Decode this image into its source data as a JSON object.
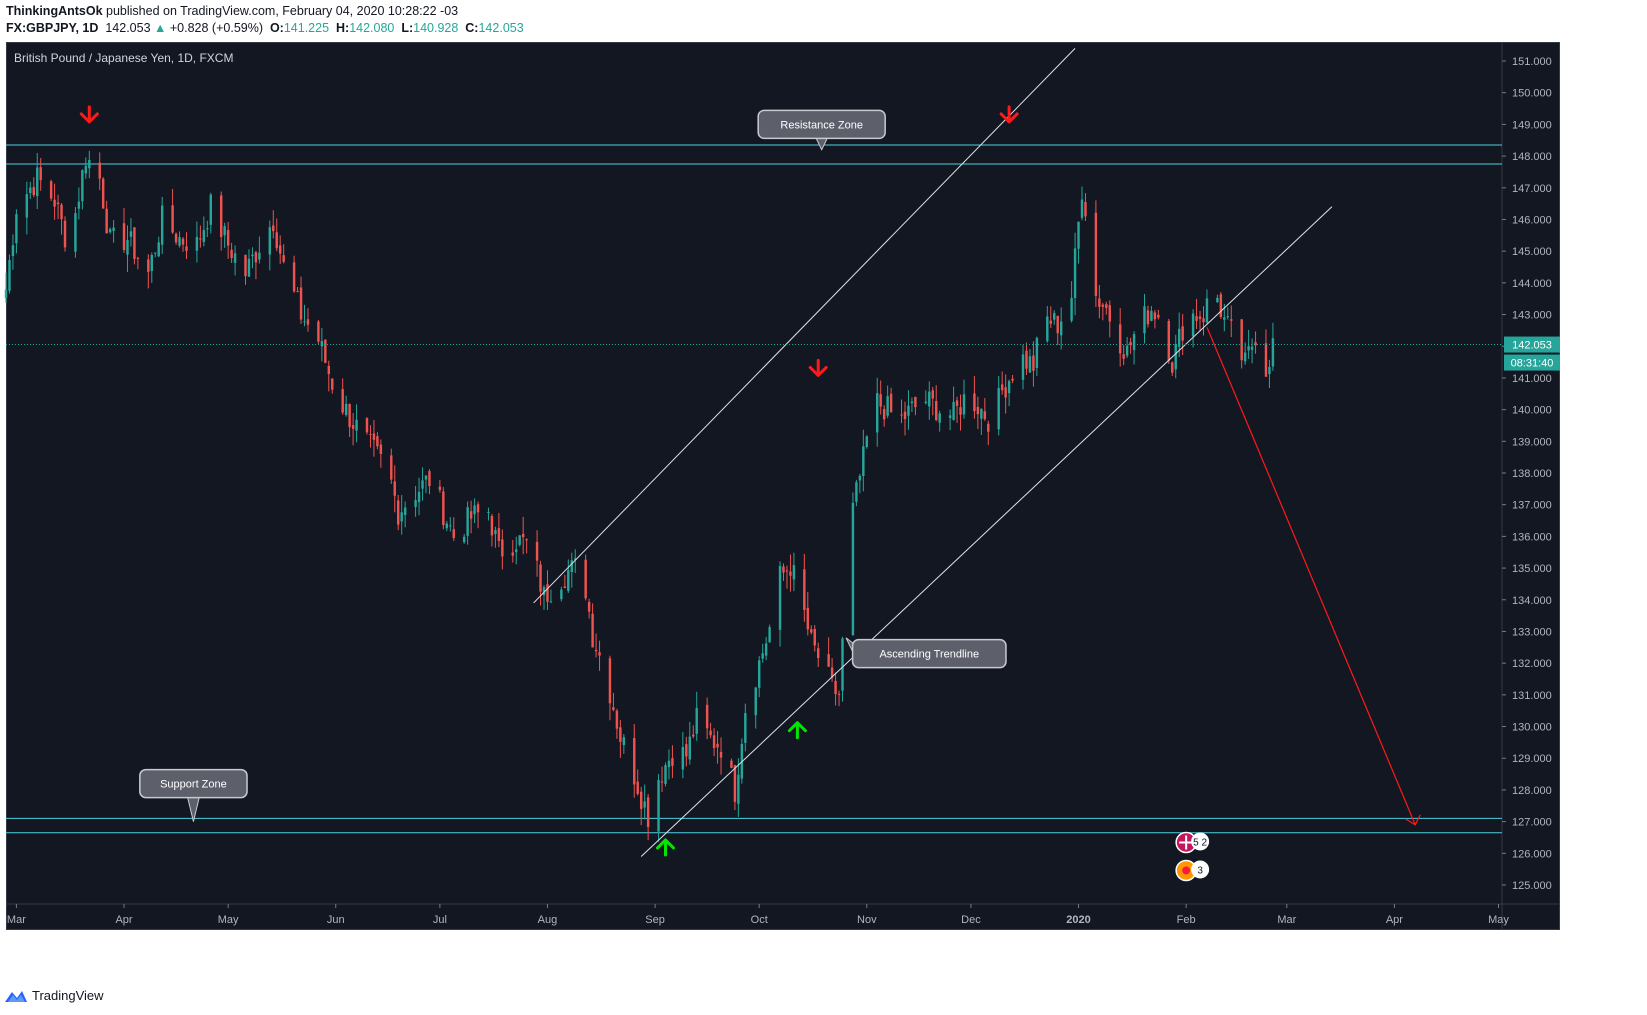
{
  "header": {
    "author": "ThinkingAntsOk",
    "published": "published on TradingView.com, February 04, 2020 10:28:22 -03",
    "symbol": "FX:GBPJPY, 1D",
    "last": "142.053",
    "change": "+0.828 (+0.59%)",
    "o_label": "O:",
    "o_val": "141.225",
    "h_label": "H:",
    "h_val": "142.080",
    "l_label": "L:",
    "l_val": "140.928",
    "c_label": "C:",
    "c_val": "142.053"
  },
  "footer": {
    "brand": "TradingView",
    "icon": "tradingview-logo-icon"
  },
  "colors": {
    "background": "#131722",
    "bull": "#26a69a",
    "bear": "#ef5350",
    "zone": "#4dd0e1",
    "arrow_up": "#00e600",
    "arrow_down": "#ff1a1a",
    "price_label": "#26a69a"
  },
  "chart_data": {
    "type": "candlestick",
    "title": "British Pound / Japanese Yen, 1D, FXCM",
    "y_axis": {
      "ticks": [
        "151.000",
        "150.000",
        "149.000",
        "148.000",
        "147.000",
        "146.000",
        "145.000",
        "144.000",
        "143.000",
        "142.000",
        "141.000",
        "140.000",
        "139.000",
        "138.000",
        "137.000",
        "136.000",
        "135.000",
        "134.000",
        "133.000",
        "132.000",
        "131.000",
        "130.000",
        "129.000",
        "128.000",
        "127.000",
        "126.000",
        "125.000"
      ],
      "range": [
        124.4,
        151.6
      ]
    },
    "x_axis": {
      "ticks": [
        "Mar",
        "Apr",
        "May",
        "Jun",
        "Jul",
        "Aug",
        "Sep",
        "Oct",
        "Nov",
        "Dec",
        "2020",
        "Feb",
        "Mar",
        "Apr",
        "May"
      ],
      "range": [
        "2019-02-26",
        "2020-05-02"
      ]
    },
    "last_price": {
      "value": 142.053,
      "label": "142.053",
      "countdown": "08:31:40"
    },
    "zones": [
      {
        "name": "Resistance Zone",
        "low": 147.75,
        "high": 148.35
      },
      {
        "name": "Support Zone",
        "low": 126.65,
        "high": 127.1
      }
    ],
    "trendlines": [
      {
        "from": [
          "2019-07-28",
          133.9
        ],
        "to": [
          "2019-12-31",
          151.4
        ]
      },
      {
        "from": [
          "2019-08-28",
          125.9
        ],
        "to": [
          "2020-03-14",
          146.4
        ]
      }
    ],
    "projection": {
      "from": [
        "2020-02-07",
        142.6
      ],
      "to": [
        "2020-04-07",
        126.9
      ]
    },
    "annotations": [
      {
        "text": "Resistance Zone",
        "at": [
          "2019-10-19",
          149.0
        ],
        "pointer": [
          "2019-10-19",
          148.2
        ]
      },
      {
        "text": "Ascending Trendline",
        "at": [
          "2019-11-19",
          132.3
        ],
        "pointer": [
          "2019-10-26",
          132.8
        ]
      },
      {
        "text": "Support Zone",
        "at": [
          "2019-04-21",
          128.2
        ],
        "pointer": [
          "2019-04-21",
          127.0
        ]
      }
    ],
    "signals": [
      {
        "type": "down",
        "date": "2019-03-22",
        "price": 149.3
      },
      {
        "type": "down",
        "date": "2019-10-18",
        "price": 141.3
      },
      {
        "type": "down",
        "date": "2019-12-12",
        "price": 149.3
      },
      {
        "type": "up",
        "date": "2019-09-04",
        "price": 126.2
      },
      {
        "type": "up",
        "date": "2019-10-12",
        "price": 129.9
      }
    ],
    "anchors": [
      {
        "date": "2019-02-26",
        "price": 143.8
      },
      {
        "date": "2019-03-01",
        "price": 146.4
      },
      {
        "date": "2019-03-07",
        "price": 147.3
      },
      {
        "date": "2019-03-12",
        "price": 146.6
      },
      {
        "date": "2019-03-15",
        "price": 145.5
      },
      {
        "date": "2019-03-18",
        "price": 146.2
      },
      {
        "date": "2019-03-21",
        "price": 148.0
      },
      {
        "date": "2019-03-25",
        "price": 147.3
      },
      {
        "date": "2019-03-28",
        "price": 145.3
      },
      {
        "date": "2019-04-02",
        "price": 145.4
      },
      {
        "date": "2019-04-08",
        "price": 144.3
      },
      {
        "date": "2019-04-12",
        "price": 146.0
      },
      {
        "date": "2019-04-17",
        "price": 145.4
      },
      {
        "date": "2019-04-22",
        "price": 145.2
      },
      {
        "date": "2019-04-26",
        "price": 146.4
      },
      {
        "date": "2019-05-01",
        "price": 145.2
      },
      {
        "date": "2019-05-06",
        "price": 144.3
      },
      {
        "date": "2019-05-10",
        "price": 145.2
      },
      {
        "date": "2019-05-14",
        "price": 146.0
      },
      {
        "date": "2019-05-17",
        "price": 144.5
      },
      {
        "date": "2019-05-22",
        "price": 143.0
      },
      {
        "date": "2019-05-27",
        "price": 142.2
      },
      {
        "date": "2019-06-01",
        "price": 140.5
      },
      {
        "date": "2019-06-06",
        "price": 139.6
      },
      {
        "date": "2019-06-11",
        "price": 138.8
      },
      {
        "date": "2019-06-16",
        "price": 138.1
      },
      {
        "date": "2019-06-19",
        "price": 136.8
      },
      {
        "date": "2019-06-24",
        "price": 137.4
      },
      {
        "date": "2019-06-28",
        "price": 137.8
      },
      {
        "date": "2019-07-02",
        "price": 136.8
      },
      {
        "date": "2019-07-05",
        "price": 136.0
      },
      {
        "date": "2019-07-10",
        "price": 136.6
      },
      {
        "date": "2019-07-15",
        "price": 136.8
      },
      {
        "date": "2019-07-18",
        "price": 135.5
      },
      {
        "date": "2019-07-23",
        "price": 135.9
      },
      {
        "date": "2019-07-27",
        "price": 135.7
      },
      {
        "date": "2019-07-31",
        "price": 134.1
      },
      {
        "date": "2019-08-03",
        "price": 134.5
      },
      {
        "date": "2019-08-07",
        "price": 134.9
      },
      {
        "date": "2019-08-11",
        "price": 135.1
      },
      {
        "date": "2019-08-14",
        "price": 132.9
      },
      {
        "date": "2019-08-18",
        "price": 131.6
      },
      {
        "date": "2019-08-22",
        "price": 129.7
      },
      {
        "date": "2019-08-26",
        "price": 128.5
      },
      {
        "date": "2019-08-30",
        "price": 127.2
      },
      {
        "date": "2019-09-02",
        "price": 128.4
      },
      {
        "date": "2019-09-06",
        "price": 129.2
      },
      {
        "date": "2019-09-10",
        "price": 129.1
      },
      {
        "date": "2019-09-13",
        "price": 130.2
      },
      {
        "date": "2019-09-17",
        "price": 129.6
      },
      {
        "date": "2019-09-20",
        "price": 129.4
      },
      {
        "date": "2019-09-24",
        "price": 128.0
      },
      {
        "date": "2019-09-27",
        "price": 130.6
      },
      {
        "date": "2019-10-01",
        "price": 132.0
      },
      {
        "date": "2019-10-04",
        "price": 133.1
      },
      {
        "date": "2019-10-07",
        "price": 134.7
      },
      {
        "date": "2019-10-10",
        "price": 135.1
      },
      {
        "date": "2019-10-13",
        "price": 134.0
      },
      {
        "date": "2019-10-16",
        "price": 132.6
      },
      {
        "date": "2019-10-19",
        "price": 132.0
      },
      {
        "date": "2019-10-22",
        "price": 131.2
      },
      {
        "date": "2019-10-24",
        "price": 131.0
      },
      {
        "date": "2019-10-26",
        "price": 134.2
      },
      {
        "date": "2019-10-28",
        "price": 136.8
      },
      {
        "date": "2019-10-31",
        "price": 138.4
      },
      {
        "date": "2019-11-03",
        "price": 140.3
      },
      {
        "date": "2019-11-07",
        "price": 140.0
      },
      {
        "date": "2019-11-10",
        "price": 139.6
      },
      {
        "date": "2019-11-14",
        "price": 140.0
      },
      {
        "date": "2019-11-18",
        "price": 140.3
      },
      {
        "date": "2019-11-22",
        "price": 140.0
      },
      {
        "date": "2019-11-26",
        "price": 139.8
      },
      {
        "date": "2019-11-30",
        "price": 140.5
      },
      {
        "date": "2019-12-04",
        "price": 140.0
      },
      {
        "date": "2019-12-07",
        "price": 139.6
      },
      {
        "date": "2019-12-10",
        "price": 140.6
      },
      {
        "date": "2019-12-13",
        "price": 141.2
      },
      {
        "date": "2019-12-16",
        "price": 141.6
      },
      {
        "date": "2019-12-19",
        "price": 141.4
      },
      {
        "date": "2019-12-22",
        "price": 142.9
      },
      {
        "date": "2019-12-26",
        "price": 142.7
      },
      {
        "date": "2019-12-30",
        "price": 143.6
      },
      {
        "date": "2020-01-02",
        "price": 147.0
      },
      {
        "date": "2020-01-04",
        "price": 145.8
      },
      {
        "date": "2020-01-06",
        "price": 143.6
      },
      {
        "date": "2020-01-09",
        "price": 143.2
      },
      {
        "date": "2020-01-12",
        "price": 142.4
      },
      {
        "date": "2020-01-15",
        "price": 141.8
      },
      {
        "date": "2020-01-18",
        "price": 142.6
      },
      {
        "date": "2020-01-22",
        "price": 143.2
      },
      {
        "date": "2020-01-25",
        "price": 142.9
      },
      {
        "date": "2020-01-28",
        "price": 141.5
      },
      {
        "date": "2020-01-31",
        "price": 142.6
      },
      {
        "date": "2020-02-03",
        "price": 143.0
      },
      {
        "date": "2020-02-06",
        "price": 143.0
      },
      {
        "date": "2020-02-09",
        "price": 143.9
      },
      {
        "date": "2020-02-12",
        "price": 142.8
      },
      {
        "date": "2020-02-15",
        "price": 142.2
      },
      {
        "date": "2020-02-18",
        "price": 141.4
      },
      {
        "date": "2020-02-21",
        "price": 142.4
      },
      {
        "date": "2020-02-24",
        "price": 141.3
      },
      {
        "date": "2020-02-26",
        "price": 142.05
      }
    ],
    "events": [
      {
        "icon": "uk-flag-icon",
        "label": "5 2"
      },
      {
        "icon": "japan-flag-icon",
        "label": "3"
      }
    ]
  }
}
